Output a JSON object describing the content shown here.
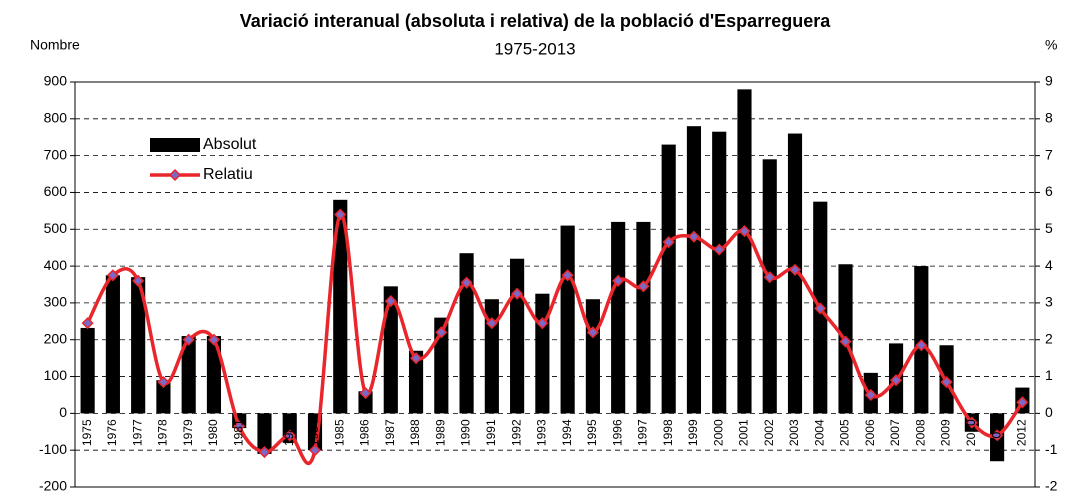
{
  "chart_data": {
    "type": "bar",
    "title": "Variació interanual (absoluta i relativa) de la població d'Esparreguera",
    "subtitle": "1975-2013",
    "y_label": "Nombre",
    "y2_label": "%",
    "categories": [
      "1975",
      "1976",
      "1977",
      "1978",
      "1979",
      "1980",
      "1981",
      "1982",
      "1983",
      "1984",
      "1985",
      "1986",
      "1987",
      "1988",
      "1989",
      "1990",
      "1991",
      "1992",
      "1993",
      "1994",
      "1995",
      "1996",
      "1997",
      "1998",
      "1999",
      "2000",
      "2001",
      "2002",
      "2003",
      "2004",
      "2005",
      "2006",
      "2007",
      "2008",
      "2009",
      "2010",
      "2011",
      "2012"
    ],
    "series": [
      {
        "name": "Absolut",
        "type": "bar",
        "color": "#000000",
        "values": [
          232,
          375,
          370,
          90,
          210,
          210,
          -40,
          -110,
          -80,
          -100,
          580,
          60,
          345,
          170,
          260,
          435,
          310,
          420,
          325,
          510,
          310,
          520,
          520,
          730,
          780,
          765,
          880,
          690,
          760,
          575,
          405,
          110,
          190,
          400,
          185,
          -50,
          -130,
          70
        ]
      },
      {
        "name": "Relatiu",
        "type": "line",
        "color": "#e8262b",
        "marker_color": "#7b68c8",
        "axis": "y2",
        "smooth": true,
        "values": [
          2.45,
          3.75,
          3.6,
          0.85,
          2.0,
          2.0,
          -0.35,
          -1.05,
          -0.6,
          -1.0,
          5.4,
          0.55,
          3.05,
          1.5,
          2.2,
          3.55,
          2.45,
          3.25,
          2.45,
          3.75,
          2.2,
          3.6,
          3.45,
          4.65,
          4.8,
          4.45,
          4.95,
          3.7,
          3.9,
          2.85,
          1.95,
          0.5,
          0.9,
          1.85,
          0.85,
          -0.25,
          -0.6,
          0.3
        ]
      }
    ],
    "ylim": [
      -200,
      900
    ],
    "yticks": [
      -200,
      -100,
      0,
      100,
      200,
      300,
      400,
      500,
      600,
      700,
      800,
      900
    ],
    "y2lim": [
      -2,
      9
    ],
    "y2ticks": [
      -2,
      -1,
      0,
      1,
      2,
      3,
      4,
      5,
      6,
      7,
      8,
      9
    ],
    "grid": true,
    "grid_style": "dashed",
    "legend": "upper left"
  }
}
